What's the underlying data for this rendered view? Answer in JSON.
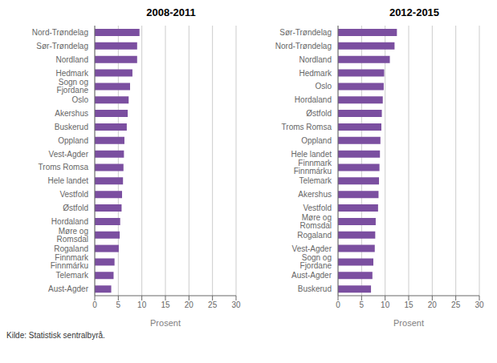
{
  "chart_data": [
    {
      "type": "bar",
      "orientation": "horizontal",
      "title": "2008-2011",
      "xlabel": "Prosent",
      "categories": [
        "Nord-Trøndelag",
        "Sør-Trøndelag",
        "Nordland",
        "Hedmark",
        "Sogn og Fjordane",
        "Oslo",
        "Akershus",
        "Buskerud",
        "Oppland",
        "Vest-Agder",
        "Troms Romsa",
        "Hele landet",
        "Vestfold",
        "Østfold",
        "Hordaland",
        "Møre og Romsdal",
        "Rogaland",
        "Finnmark Finnmárku",
        "Telemark",
        "Aust-Agder"
      ],
      "values": [
        9.5,
        9.0,
        9.0,
        8.0,
        7.5,
        7.2,
        7.0,
        6.8,
        6.3,
        6.2,
        6.1,
        6.0,
        5.8,
        5.7,
        5.4,
        5.3,
        5.1,
        4.2,
        4.0,
        3.5
      ],
      "color": "#7b4fa0",
      "xlim": [
        0,
        30
      ],
      "xticks": [
        0,
        5,
        10,
        15,
        20,
        25,
        30
      ],
      "grid": true,
      "annotations": [
        "Kilde: Statistisk sentralbyrå."
      ]
    },
    {
      "type": "bar",
      "orientation": "horizontal",
      "title": "2012-2015",
      "xlabel": "Prosent",
      "categories": [
        "Sør-Trøndelag",
        "Nord-Trøndelag",
        "Nordland",
        "Hedmark",
        "Oslo",
        "Hordaland",
        "Østfold",
        "Troms Romsa",
        "Oppland",
        "Hele landet",
        "Finnmark Finnmárku",
        "Telemark",
        "Akershus",
        "Vestfold",
        "Møre og Romsdal",
        "Rogaland",
        "Vest-Agder",
        "Sogn og Fjordane",
        "Aust-Agder",
        "Buskerud"
      ],
      "values": [
        12.5,
        12.0,
        11.0,
        9.8,
        9.7,
        9.5,
        9.3,
        9.2,
        9.0,
        8.9,
        8.8,
        8.7,
        8.6,
        8.5,
        8.0,
        7.9,
        7.8,
        7.5,
        7.3,
        7.0
      ],
      "color": "#7b4fa0",
      "xlim": [
        0,
        30
      ],
      "xticks": [
        0,
        5,
        10,
        15,
        20,
        25,
        30
      ],
      "grid": true
    }
  ]
}
